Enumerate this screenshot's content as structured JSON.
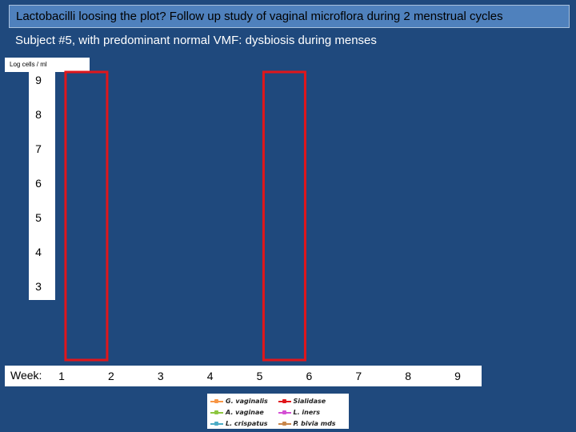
{
  "header": {
    "title": "Lactobacilli loosing the plot? Follow up study of vaginal microflora during 2 menstrual cycles",
    "subtitle": "Subject #5, with predominant normal VMF: dysbiosis during menses"
  },
  "chart_data": {
    "type": "line",
    "ylabel": "Log cells / ml",
    "xlabel": "Week:",
    "y_ticks": [
      9,
      8,
      7,
      6,
      5,
      4,
      3
    ],
    "ylim": [
      3,
      9
    ],
    "x_ticks": [
      1,
      2,
      3,
      4,
      5,
      6,
      7,
      8,
      9
    ],
    "xlim": [
      1,
      9
    ],
    "menses_weeks": [
      1.5,
      5.5
    ],
    "grid": false,
    "legend_position": "bottom",
    "legend": [
      {
        "name": "G. vaginalis",
        "color": "#f79646"
      },
      {
        "name": "Sialidase",
        "color": "#e0161b"
      },
      {
        "name": "A. vaginae",
        "color": "#8dc63f"
      },
      {
        "name": "L. iners",
        "color": "#d44fd4"
      },
      {
        "name": "L. crispatus",
        "color": "#4bacc6"
      },
      {
        "name": "P. bivia mds",
        "color": "#c8864a"
      }
    ],
    "menses_highlight_color": "#e0161b"
  }
}
